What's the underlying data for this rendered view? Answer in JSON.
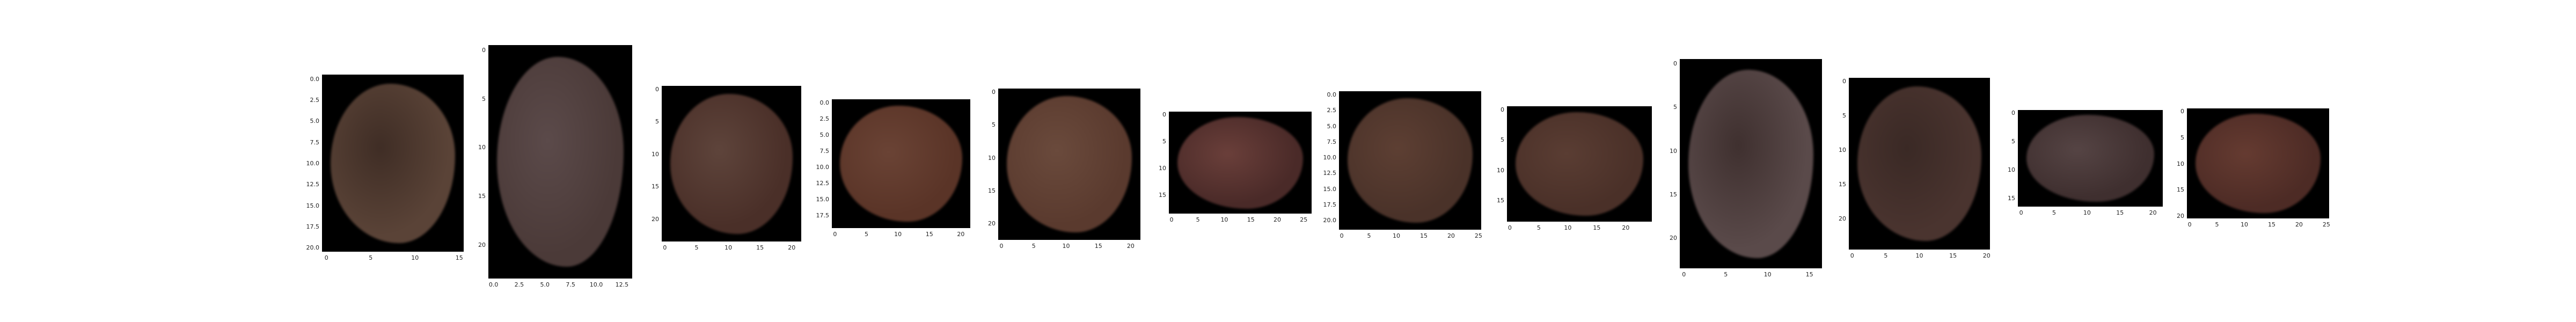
{
  "panels": [
    {
      "width": 16,
      "height": 21,
      "xticks": [
        "0",
        "5",
        "10",
        "15"
      ],
      "yticks": [
        "0.0",
        "2.5",
        "5.0",
        "7.5",
        "10.0",
        "12.5",
        "15.0",
        "17.5",
        "20.0"
      ],
      "colors": [
        "#5a4337",
        "#3f2d25"
      ]
    },
    {
      "width": 14,
      "height": 24,
      "xticks": [
        "0.0",
        "2.5",
        "5.0",
        "7.5",
        "10.0",
        "12.5"
      ],
      "yticks": [
        "0",
        "5",
        "10",
        "15",
        "20"
      ],
      "colors": [
        "#4b3a38",
        "#5b4a4a"
      ]
    },
    {
      "width": 22,
      "height": 24,
      "xticks": [
        "0",
        "5",
        "10",
        "15",
        "20"
      ],
      "yticks": [
        "0",
        "5",
        "10",
        "15",
        "20"
      ],
      "colors": [
        "#4a2f28",
        "#5e443b"
      ]
    },
    {
      "width": 22,
      "height": 20,
      "xticks": [
        "0",
        "5",
        "10",
        "15",
        "20"
      ],
      "yticks": [
        "0.0",
        "2.5",
        "5.0",
        "7.5",
        "10.0",
        "12.5",
        "15.0",
        "17.5"
      ],
      "colors": [
        "#5a3427",
        "#6a4335"
      ]
    },
    {
      "width": 22,
      "height": 23,
      "xticks": [
        "0",
        "5",
        "10",
        "15",
        "20"
      ],
      "yticks": [
        "0",
        "5",
        "10",
        "15",
        "20"
      ],
      "colors": [
        "#5a3a2e",
        "#6a4a3c"
      ]
    },
    {
      "width": 27,
      "height": 19,
      "xticks": [
        "0",
        "5",
        "10",
        "15",
        "20",
        "25"
      ],
      "yticks": [
        "0",
        "5",
        "10",
        "15"
      ],
      "colors": [
        "#4a2a28",
        "#6a3f3a"
      ]
    },
    {
      "width": 26,
      "height": 22,
      "xticks": [
        "0",
        "5",
        "10",
        "15",
        "20",
        "25"
      ],
      "yticks": [
        "0.0",
        "2.5",
        "5.0",
        "7.5",
        "10.0",
        "12.5",
        "15.0",
        "17.5",
        "20.0"
      ],
      "colors": [
        "#4a3229",
        "#5d3f33"
      ]
    },
    {
      "width": 25,
      "height": 19,
      "xticks": [
        "0",
        "5",
        "10",
        "15",
        "20"
      ],
      "yticks": [
        "0",
        "5",
        "10",
        "15"
      ],
      "colors": [
        "#4a3028",
        "#5a3d33"
      ]
    },
    {
      "width": 17,
      "height": 24,
      "xticks": [
        "0",
        "5",
        "10",
        "15"
      ],
      "yticks": [
        "0",
        "5",
        "10",
        "15",
        "20"
      ],
      "colors": [
        "#5a4a4a",
        "#3f302f"
      ]
    },
    {
      "width": 21,
      "height": 25,
      "xticks": [
        "0",
        "5",
        "10",
        "15",
        "20"
      ],
      "yticks": [
        "0",
        "5",
        "10",
        "15",
        "20"
      ],
      "colors": [
        "#4a342f",
        "#3a2925"
      ]
    },
    {
      "width": 22,
      "height": 17,
      "xticks": [
        "0",
        "5",
        "10",
        "15",
        "20"
      ],
      "yticks": [
        "0",
        "5",
        "10",
        "15"
      ],
      "colors": [
        "#3f2f2f",
        "#554444"
      ]
    },
    {
      "width": 26,
      "height": 21,
      "xticks": [
        "0",
        "5",
        "10",
        "15",
        "20",
        "25"
      ],
      "yticks": [
        "0",
        "5",
        "10",
        "15",
        "20"
      ],
      "colors": [
        "#4d2b25",
        "#653b31"
      ]
    }
  ]
}
